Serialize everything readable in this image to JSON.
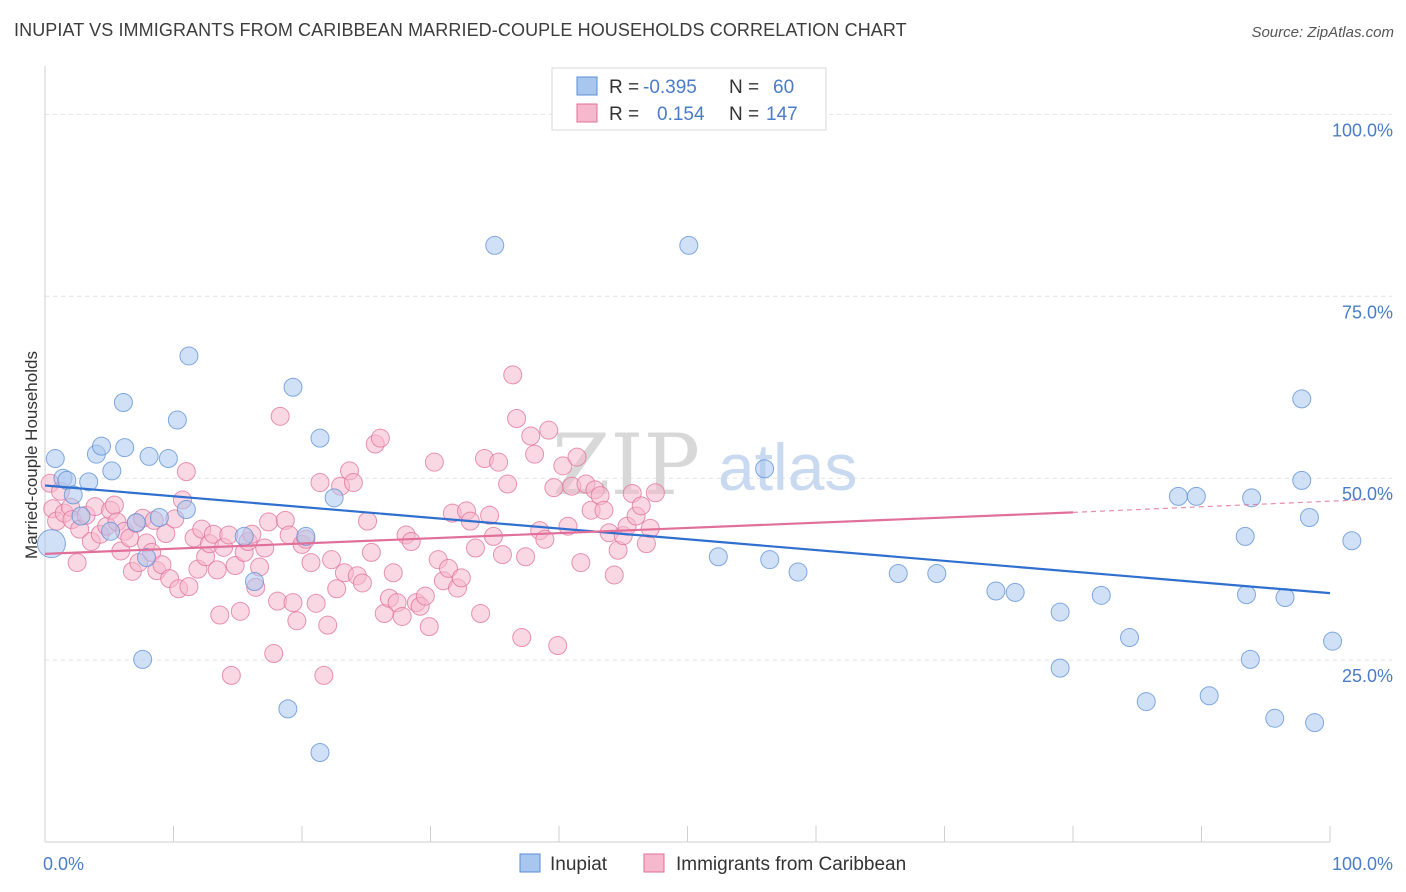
{
  "title": "INUPIAT VS IMMIGRANTS FROM CARIBBEAN MARRIED-COUPLE HOUSEHOLDS CORRELATION CHART",
  "source": "Source: ZipAtlas.com",
  "watermark": {
    "zip": "ZIP",
    "atlas": "atlas"
  },
  "colors": {
    "inupiat": "#5b8fd6",
    "inupiat_fill": "#a9c6ee",
    "caribbean": "#e0709a",
    "caribbean_fill": "#f5b8cc",
    "tick": "#4a7cc8"
  },
  "legend": {
    "rows": [
      {
        "r_label": "R = ",
        "r_value": "-0.395",
        "n_label": "N = ",
        "n_value": "60"
      },
      {
        "r_label": "R = ",
        "r_value": "0.154",
        "n_label": "N = ",
        "n_value": "147"
      }
    ]
  },
  "bottom_legend": [
    "Inupiat",
    "Immigrants from Caribbean"
  ],
  "chart_data": {
    "type": "scatter",
    "title": "INUPIAT VS IMMIGRANTS FROM CARIBBEAN MARRIED-COUPLE HOUSEHOLDS CORRELATION CHART",
    "xlabel": "",
    "ylabel": "Married-couple Households",
    "xlim": [
      0,
      100
    ],
    "ylim": [
      0,
      105
    ],
    "x_tick_labels": [
      "0.0%",
      "100.0%"
    ],
    "y_tick_labels": [
      "25.0%",
      "50.0%",
      "75.0%",
      "100.0%"
    ],
    "y_ticks": [
      25,
      50,
      75,
      100
    ],
    "grid": true,
    "legend_position": "top-center",
    "series": [
      {
        "name": "Inupiat",
        "color": "#5b8fd6",
        "trend": {
          "x": [
            0,
            100
          ],
          "y": [
            49.0,
            34.2
          ]
        },
        "points": [
          [
            0.5,
            41
          ],
          [
            0.8,
            52.7
          ],
          [
            1.4,
            50
          ],
          [
            1.7,
            49.7
          ],
          [
            2.2,
            47.7
          ],
          [
            2.8,
            44.8
          ],
          [
            3.4,
            49.5
          ],
          [
            4.0,
            53.3
          ],
          [
            4.4,
            54.4
          ],
          [
            5.1,
            42.7
          ],
          [
            5.2,
            51.0
          ],
          [
            6.1,
            60.4
          ],
          [
            6.2,
            54.2
          ],
          [
            7.1,
            43.9
          ],
          [
            7.6,
            25.1
          ],
          [
            7.9,
            39.1
          ],
          [
            8.1,
            53.0
          ],
          [
            8.9,
            44.6
          ],
          [
            9.6,
            52.7
          ],
          [
            10.3,
            58.0
          ],
          [
            11.0,
            45.7
          ],
          [
            11.2,
            66.8
          ],
          [
            15.5,
            42.0
          ],
          [
            16.3,
            35.8
          ],
          [
            18.9,
            18.3
          ],
          [
            19.3,
            62.5
          ],
          [
            20.3,
            42.0
          ],
          [
            21.4,
            55.5
          ],
          [
            21.4,
            12.3
          ],
          [
            22.5,
            47.3
          ],
          [
            35.0,
            82.0
          ],
          [
            50.1,
            82.0
          ],
          [
            52.4,
            39.2
          ],
          [
            56.0,
            51.3
          ],
          [
            56.4,
            38.8
          ],
          [
            58.6,
            37.1
          ],
          [
            66.4,
            36.9
          ],
          [
            69.4,
            36.9
          ],
          [
            74.0,
            34.5
          ],
          [
            75.5,
            34.3
          ],
          [
            79.0,
            31.6
          ],
          [
            79.0,
            23.9
          ],
          [
            82.2,
            33.9
          ],
          [
            84.4,
            28.1
          ],
          [
            85.7,
            19.3
          ],
          [
            88.2,
            47.5
          ],
          [
            89.6,
            47.5
          ],
          [
            90.6,
            20.1
          ],
          [
            93.4,
            42.0
          ],
          [
            93.5,
            34.0
          ],
          [
            93.8,
            25.1
          ],
          [
            93.9,
            47.3
          ],
          [
            95.7,
            17.0
          ],
          [
            96.5,
            33.6
          ],
          [
            97.8,
            49.7
          ],
          [
            97.8,
            60.9
          ],
          [
            98.4,
            44.6
          ],
          [
            98.8,
            16.4
          ],
          [
            100.2,
            27.6
          ],
          [
            101.7,
            41.4
          ]
        ]
      },
      {
        "name": "Immigrants from Caribbean",
        "color": "#e0709a",
        "trend": {
          "x": [
            0,
            80,
            100
          ],
          "y": [
            39.6,
            45.3,
            46.6
          ],
          "dashed_from_x": 80
        },
        "points": [
          [
            0.4,
            49.3
          ],
          [
            0.6,
            45.8
          ],
          [
            0.9,
            44.1
          ],
          [
            1.2,
            48.2
          ],
          [
            1.5,
            45.2
          ],
          [
            2.0,
            46.0
          ],
          [
            2.1,
            44.3
          ],
          [
            2.5,
            38.4
          ],
          [
            2.7,
            43.0
          ],
          [
            3.2,
            44.9
          ],
          [
            3.6,
            41.3
          ],
          [
            3.9,
            46.1
          ],
          [
            4.3,
            42.3
          ],
          [
            4.8,
            43.4
          ],
          [
            5.1,
            45.6
          ],
          [
            5.4,
            46.3
          ],
          [
            5.6,
            44.0
          ],
          [
            5.9,
            40.0
          ],
          [
            6.2,
            42.7
          ],
          [
            6.6,
            41.8
          ],
          [
            6.8,
            37.2
          ],
          [
            7.1,
            43.8
          ],
          [
            7.3,
            38.4
          ],
          [
            7.6,
            44.5
          ],
          [
            7.9,
            41.1
          ],
          [
            8.3,
            39.8
          ],
          [
            8.5,
            44.2
          ],
          [
            8.7,
            37.3
          ],
          [
            9.1,
            38.1
          ],
          [
            9.4,
            42.4
          ],
          [
            9.7,
            36.2
          ],
          [
            10.1,
            44.4
          ],
          [
            10.4,
            34.8
          ],
          [
            10.7,
            47.0
          ],
          [
            11.0,
            50.9
          ],
          [
            11.2,
            35.1
          ],
          [
            11.6,
            41.8
          ],
          [
            11.9,
            37.5
          ],
          [
            12.2,
            43.0
          ],
          [
            12.5,
            39.2
          ],
          [
            12.8,
            41.0
          ],
          [
            13.1,
            42.3
          ],
          [
            13.4,
            37.4
          ],
          [
            13.6,
            31.2
          ],
          [
            13.9,
            40.5
          ],
          [
            14.3,
            42.2
          ],
          [
            14.5,
            22.9
          ],
          [
            14.8,
            38.0
          ],
          [
            15.2,
            31.7
          ],
          [
            15.5,
            39.8
          ],
          [
            15.8,
            41.3
          ],
          [
            16.1,
            42.3
          ],
          [
            16.4,
            35.0
          ],
          [
            16.7,
            37.8
          ],
          [
            17.1,
            40.4
          ],
          [
            17.4,
            44.0
          ],
          [
            17.8,
            25.9
          ],
          [
            18.1,
            33.1
          ],
          [
            18.3,
            58.5
          ],
          [
            18.7,
            44.2
          ],
          [
            19.0,
            42.2
          ],
          [
            19.3,
            32.9
          ],
          [
            19.6,
            30.4
          ],
          [
            20.0,
            40.9
          ],
          [
            20.3,
            41.6
          ],
          [
            20.7,
            38.4
          ],
          [
            21.1,
            32.8
          ],
          [
            21.4,
            49.4
          ],
          [
            21.7,
            22.9
          ],
          [
            22.0,
            29.8
          ],
          [
            22.3,
            38.8
          ],
          [
            22.7,
            34.8
          ],
          [
            23.0,
            48.9
          ],
          [
            23.3,
            37.0
          ],
          [
            23.7,
            51.0
          ],
          [
            24.0,
            49.4
          ],
          [
            24.3,
            36.6
          ],
          [
            24.7,
            35.6
          ],
          [
            25.1,
            44.1
          ],
          [
            25.4,
            39.8
          ],
          [
            25.7,
            54.7
          ],
          [
            26.1,
            55.5
          ],
          [
            26.4,
            31.4
          ],
          [
            26.8,
            33.5
          ],
          [
            27.1,
            37.0
          ],
          [
            27.4,
            32.9
          ],
          [
            27.8,
            31.0
          ],
          [
            28.1,
            42.2
          ],
          [
            28.5,
            41.3
          ],
          [
            28.9,
            32.9
          ],
          [
            29.2,
            32.4
          ],
          [
            29.6,
            33.8
          ],
          [
            29.9,
            29.6
          ],
          [
            30.3,
            52.2
          ],
          [
            30.6,
            38.8
          ],
          [
            31.0,
            35.9
          ],
          [
            31.4,
            37.6
          ],
          [
            31.7,
            45.2
          ],
          [
            32.1,
            34.9
          ],
          [
            32.4,
            36.3
          ],
          [
            32.8,
            45.5
          ],
          [
            33.1,
            44.1
          ],
          [
            33.5,
            40.4
          ],
          [
            33.9,
            31.4
          ],
          [
            34.2,
            52.7
          ],
          [
            34.6,
            44.9
          ],
          [
            34.9,
            42.0
          ],
          [
            35.3,
            52.2
          ],
          [
            35.6,
            39.5
          ],
          [
            36.0,
            49.2
          ],
          [
            36.4,
            64.2
          ],
          [
            36.7,
            58.2
          ],
          [
            37.1,
            28.1
          ],
          [
            37.4,
            39.2
          ],
          [
            37.8,
            55.8
          ],
          [
            38.1,
            53.3
          ],
          [
            38.5,
            42.8
          ],
          [
            38.9,
            41.6
          ],
          [
            39.2,
            56.6
          ],
          [
            39.6,
            48.7
          ],
          [
            39.9,
            27.0
          ],
          [
            40.3,
            51.7
          ],
          [
            40.7,
            43.4
          ],
          [
            41.0,
            48.9
          ],
          [
            41.4,
            52.9
          ],
          [
            41.7,
            38.4
          ],
          [
            42.1,
            49.2
          ],
          [
            42.5,
            45.6
          ],
          [
            42.8,
            48.4
          ],
          [
            43.2,
            47.6
          ],
          [
            43.5,
            45.6
          ],
          [
            43.9,
            42.5
          ],
          [
            44.3,
            36.7
          ],
          [
            44.6,
            40.1
          ],
          [
            45.0,
            42.1
          ],
          [
            45.3,
            43.4
          ],
          [
            45.7,
            47.9
          ],
          [
            46.0,
            44.8
          ],
          [
            46.4,
            46.2
          ],
          [
            46.8,
            41.0
          ],
          [
            47.1,
            43.1
          ],
          [
            47.5,
            48.0
          ]
        ]
      }
    ]
  }
}
